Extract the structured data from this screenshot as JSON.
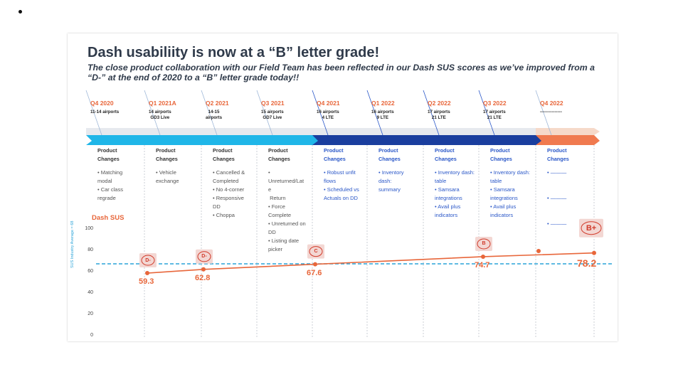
{
  "title": "Dash usabiliity is now at a “B” letter grade!",
  "subtitle": "The close product collaboration with our Field Team has been reflected in our Dash SUS scores as we’ve improved from a “D-” at the end of 2020 to a “B” letter grade today!!",
  "colors": {
    "accent": "#e8663a",
    "lightblue": "#1fb6e8",
    "darkblue": "#1a3e9e",
    "textblue": "#2a57c8"
  },
  "timeline": [
    {
      "quarter": "Q4 2020",
      "airports": "11-14 airports",
      "extra": "",
      "pc": "Product\nChanges",
      "items": "• Matching\nmodal\n• Car class\nregrade",
      "color": "light"
    },
    {
      "quarter": "Q1 2021A",
      "airports": "14 airports",
      "extra": "GD3 Live",
      "pc": "Product\nChanges",
      "items": "• Vehicle\nexchange",
      "color": "light"
    },
    {
      "quarter": "Q2 2021",
      "airports": "14-15\nairports",
      "extra": "",
      "pc": "Product\nChanges",
      "items": "• Cancelled &\nCompleted\n• No 4-corner\n• Responsive\nDD\n• Choppa",
      "color": "light"
    },
    {
      "quarter": "Q3 2021",
      "airports": "15 airports",
      "extra": "GD7 Live",
      "pc": "Product\nChanges",
      "items": "•\nUnreturned/Lat\ne\n Return\n• Force\nComplete\n• Unreturned on\nDD\n• Listing date\npicker",
      "color": "light"
    },
    {
      "quarter": "Q4 2021",
      "airports": "16 airports",
      "extra": "4 LTE",
      "pc": "Product\nChanges",
      "items": "• Robust unfit\nflows\n• Scheduled vs\nActuals on DD",
      "color": "dark"
    },
    {
      "quarter": "Q1 2022",
      "airports": "16 airports",
      "extra": "9 LTE",
      "pc": "Product\nChanges",
      "items": "• Inventory\ndash:\nsummary",
      "color": "dark"
    },
    {
      "quarter": "Q2 2022",
      "airports": "17 airports",
      "extra": "21 LTE",
      "pc": "Product\nChanges",
      "items": "• Inventory dash:\ntable\n• Samsara\nintegrations\n• Avail plus\nindicators",
      "color": "dark"
    },
    {
      "quarter": "Q3 2022",
      "airports": "17 airports",
      "extra": "21 LTE",
      "pc": "Product\nChanges",
      "items": "• Inventory dash:\ntable\n• Samsara\nintegrations\n• Avail plus\nindicators",
      "color": "dark"
    },
    {
      "quarter": "Q4 2022",
      "airports": "---------------",
      "extra": "",
      "pc": "Product\nChanges",
      "items": "• ———\n\n\n• ———\n\n\n• ———",
      "color": "orange"
    }
  ],
  "chart_data": {
    "type": "line",
    "series_label": "Dash SUS",
    "ylabel": "SUS Industry  Average = 68",
    "ylim": [
      0,
      100
    ],
    "yticks": [
      0,
      20,
      40,
      60,
      80,
      100
    ],
    "industry_average": 68,
    "points": [
      {
        "x": "Q4 2020",
        "y": 59.3,
        "label": "59.3",
        "grade": "D-"
      },
      {
        "x": "Q2 2021",
        "y": 62.8,
        "label": "62.8",
        "grade": "D-"
      },
      {
        "x": "Q4 2021",
        "y": 67.6,
        "label": "67.6",
        "grade": "C"
      },
      {
        "x": "Q3 2022",
        "y": 74.7,
        "label": "74.7",
        "grade": "B"
      },
      {
        "x": "Q4 2022",
        "y": 78.2,
        "label": "78.2",
        "grade": "B+"
      }
    ],
    "extra_marker": {
      "x": "Q3/Q4 2022",
      "y": 80
    }
  }
}
